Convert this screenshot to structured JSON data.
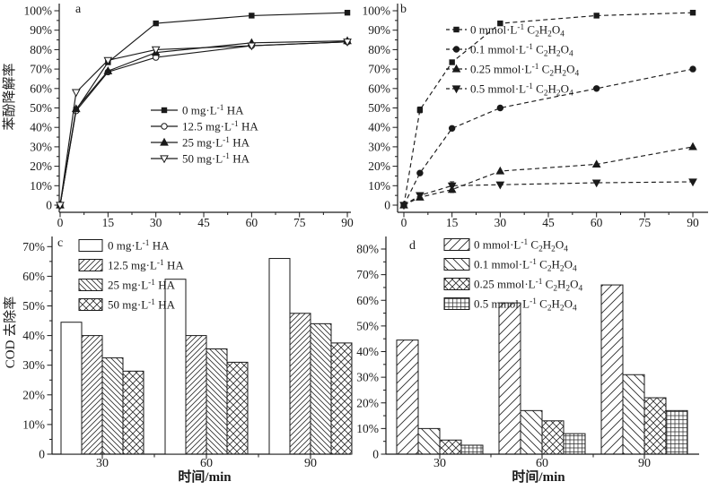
{
  "figure": {
    "background": "#ffffff",
    "ink_color": "#1a1a1a",
    "description": "Four-panel scientific figure: phenol degradation line charts (a, b) and COD removal bar charts (c, d)"
  },
  "chart_data": [
    {
      "id": "a",
      "type": "line",
      "panel_label": "a",
      "ylabel": "苯酚降解率",
      "xlabel": "",
      "line_style": "solid",
      "xlim": [
        0,
        90
      ],
      "ylim": [
        0,
        100
      ],
      "x": [
        0,
        5,
        15,
        30,
        60,
        90
      ],
      "xticks": [
        0,
        15,
        30,
        45,
        60,
        75,
        90
      ],
      "xtick_labels": [
        "0",
        "15",
        "30",
        "45",
        "60",
        "75",
        "90"
      ],
      "yticks": [
        0,
        10,
        20,
        30,
        40,
        50,
        60,
        70,
        80,
        90,
        100
      ],
      "ytick_labels": [
        "0",
        "10%",
        "20%",
        "30%",
        "40%",
        "50%",
        "60%",
        "70%",
        "80%",
        "90%",
        "100%"
      ],
      "legend_position": "inside-center",
      "series": [
        {
          "name": "0 mg·L^{-1} HA",
          "marker": "square-filled",
          "values": [
            0,
            49,
            73.5,
            93.5,
            97.5,
            99
          ]
        },
        {
          "name": "12.5 mg·L^{-1} HA",
          "marker": "circle-open",
          "values": [
            0,
            48.5,
            68.5,
            76,
            82,
            84
          ]
        },
        {
          "name": "25 mg·L^{-1} HA",
          "marker": "triangle-up-filled",
          "values": [
            0,
            49.5,
            69,
            78.5,
            83.5,
            84.5
          ]
        },
        {
          "name": "50 mg·L^{-1} HA",
          "marker": "triangle-down-open",
          "values": [
            0,
            58,
            74.5,
            80,
            82,
            84
          ]
        }
      ]
    },
    {
      "id": "b",
      "type": "line",
      "panel_label": "b",
      "ylabel": "",
      "xlabel": "",
      "line_style": "dashed",
      "xlim": [
        0,
        90
      ],
      "ylim": [
        0,
        100
      ],
      "x": [
        0,
        5,
        15,
        30,
        60,
        90
      ],
      "xticks": [
        0,
        15,
        30,
        45,
        60,
        75,
        90
      ],
      "xtick_labels": [
        "0",
        "15",
        "30",
        "45",
        "60",
        "75",
        "90"
      ],
      "yticks": [
        0,
        10,
        20,
        30,
        40,
        50,
        60,
        70,
        80,
        90,
        100
      ],
      "ytick_labels": [
        "0",
        "10%",
        "20%",
        "30%",
        "40%",
        "50%",
        "60%",
        "70%",
        "80%",
        "90%",
        "100%"
      ],
      "legend_position": "inside-top-right",
      "series": [
        {
          "name": "0 mmol·L^{-1} C_{2}H_{2}O_{4}",
          "marker": "square-filled",
          "values": [
            0,
            49,
            73.5,
            93.5,
            97.5,
            99
          ],
          "yerr": [
            0,
            1.5,
            0,
            0,
            0,
            0
          ]
        },
        {
          "name": "0.1 mmol·L^{-1} C_{2}H_{2}O_{4}",
          "marker": "circle-filled",
          "values": [
            0,
            16.5,
            39.5,
            50,
            60,
            70
          ],
          "yerr": [
            0,
            0,
            0,
            0,
            0,
            0
          ]
        },
        {
          "name": "0.25 mmol·L^{-1} C_{2}H_{2}O_{4}",
          "marker": "triangle-up-filled",
          "values": [
            0,
            4,
            8,
            17.5,
            21,
            30
          ],
          "yerr": [
            0,
            1.2,
            1.5,
            0,
            0,
            0
          ]
        },
        {
          "name": "0.5 mmol·L^{-1} C_{2}H_{2}O_{4}",
          "marker": "triangle-down-filled",
          "values": [
            0,
            5,
            10,
            10.5,
            11.5,
            12
          ],
          "yerr": [
            0,
            0,
            2,
            0,
            0,
            0
          ]
        }
      ]
    },
    {
      "id": "c",
      "type": "bar",
      "panel_label": "c",
      "ylabel": "COD 去除率",
      "xlabel": "时间/min",
      "ylim": [
        0,
        70
      ],
      "categories": [
        "30",
        "60",
        "90"
      ],
      "yticks": [
        0,
        10,
        20,
        30,
        40,
        50,
        60,
        70
      ],
      "ytick_labels": [
        "0",
        "10%",
        "20%",
        "30%",
        "40%",
        "50%",
        "60%",
        "70%"
      ],
      "legend_position": "inside-top-left",
      "series": [
        {
          "name": "0 mg·L^{-1} HA",
          "hatch": "none",
          "values": [
            44.5,
            59,
            66
          ]
        },
        {
          "name": "12.5 mg·L^{-1} HA",
          "hatch": "diag-forward",
          "values": [
            40,
            40,
            47.5
          ]
        },
        {
          "name": "25 mg·L^{-1} HA",
          "hatch": "diag-back",
          "values": [
            32.5,
            35.5,
            44
          ]
        },
        {
          "name": "50 mg·L^{-1} HA",
          "hatch": "cross",
          "values": [
            28,
            31,
            37.5
          ]
        }
      ]
    },
    {
      "id": "d",
      "type": "bar",
      "panel_label": "d",
      "ylabel": "",
      "xlabel": "时间/min",
      "ylim": [
        0,
        80
      ],
      "categories": [
        "30",
        "60",
        "90"
      ],
      "yticks": [
        0,
        10,
        20,
        30,
        40,
        50,
        60,
        70,
        80
      ],
      "ytick_labels": [
        "0",
        "10%",
        "20%",
        "30%",
        "40%",
        "50%",
        "60%",
        "70%",
        "80%"
      ],
      "legend_position": "inside-top-left",
      "series": [
        {
          "name": "0 mmol·L^{-1} C_{2}H_{2}O_{4}",
          "hatch": "diag-forward-wide",
          "values": [
            44.5,
            59,
            66
          ]
        },
        {
          "name": "0.1 mmol·L^{-1} C_{2}H_{2}O_{4}",
          "hatch": "diag-back-wide",
          "values": [
            10,
            17,
            31
          ]
        },
        {
          "name": "0.25 mmol·L^{-1} C_{2}H_{2}O_{4}",
          "hatch": "cross",
          "values": [
            5.5,
            13,
            22
          ]
        },
        {
          "name": "0.5 mmol·L^{-1} C_{2}H_{2}O_{4}",
          "hatch": "grid",
          "values": [
            3.5,
            8,
            17
          ]
        }
      ]
    }
  ]
}
